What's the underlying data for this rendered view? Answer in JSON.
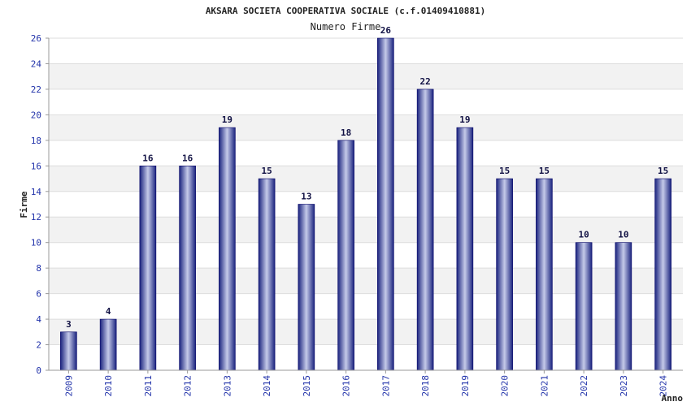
{
  "colors": {
    "bar_dark": "#1a237e",
    "bar_light": "#c5cae9",
    "bar_stroke": "#000066",
    "band": "#f2f2f2",
    "grid": "#dddddd",
    "tick_text": "#2233aa"
  },
  "chart_data": {
    "type": "bar",
    "title": "AKSARA SOCIETA COOPERATIVA SOCIALE (c.f.01409410881)",
    "subtitle": "Numero Firme",
    "xlabel": "Anno",
    "ylabel": "Firme",
    "ylim": [
      0,
      26
    ],
    "yticks": [
      0,
      2,
      4,
      6,
      8,
      10,
      12,
      14,
      16,
      18,
      20,
      22,
      24,
      26
    ],
    "categories": [
      "2009",
      "2010",
      "2011",
      "2012",
      "2013",
      "2014",
      "2015",
      "2016",
      "2017",
      "2018",
      "2019",
      "2020",
      "2021",
      "2022",
      "2023",
      "2024"
    ],
    "values": [
      3,
      4,
      16,
      16,
      19,
      15,
      13,
      18,
      26,
      22,
      19,
      15,
      15,
      10,
      10,
      15
    ],
    "grid": true,
    "legend": "none"
  }
}
